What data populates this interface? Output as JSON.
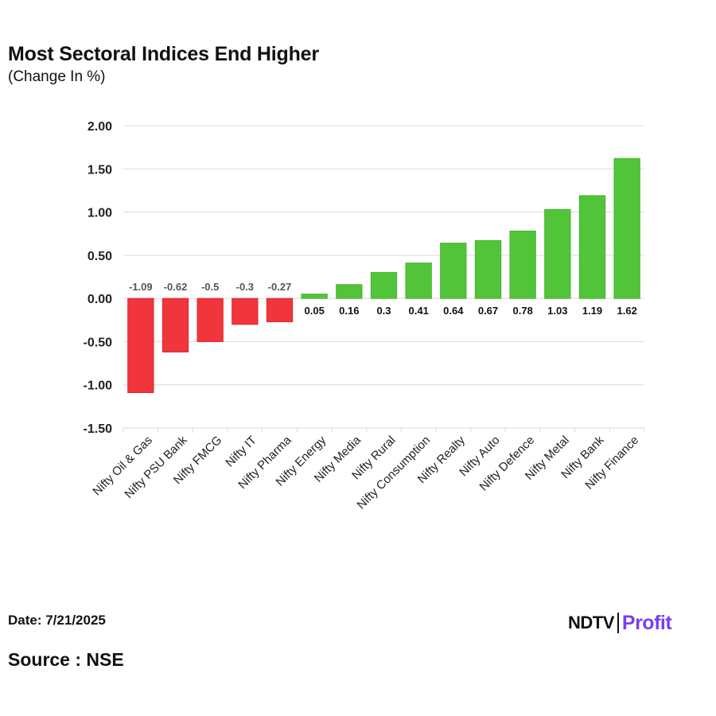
{
  "header": {
    "title": "Most Sectoral Indices End Higher",
    "subtitle": "(Change In %)"
  },
  "footer": {
    "date": "Date: 7/21/2025",
    "source": "Source : NSE",
    "logo_left": "NDTV",
    "logo_right": "Profit"
  },
  "colors": {
    "positive": "#52c43a",
    "negative": "#f0353d",
    "grid": "#d9d9d9"
  },
  "chart_data": {
    "type": "bar",
    "title": "Most Sectoral Indices End Higher",
    "subtitle": "(Change In %)",
    "categories": [
      "Nifty Oil & Gas",
      "Nifty PSU Bank",
      "Nifty FMCG",
      "Nifty IT",
      "Nifty Pharma",
      "Nifty Energy",
      "Nifty Media",
      "Nifty Rural",
      "Nifty Consumption",
      "Nifty Realty",
      "Nifty Auto",
      "Nifty Defence",
      "Nifty Metal",
      "Nifty Bank",
      "Nifty Finance"
    ],
    "values": [
      -1.09,
      -0.62,
      -0.5,
      -0.3,
      -0.27,
      0.05,
      0.16,
      0.3,
      0.41,
      0.64,
      0.67,
      0.78,
      1.03,
      1.19,
      1.62
    ],
    "value_labels": [
      "-1.09",
      "-0.62",
      "-0.5",
      "-0.3",
      "-0.27",
      "0.05",
      "0.16",
      "0.3",
      "0.41",
      "0.64",
      "0.67",
      "0.78",
      "1.03",
      "1.19",
      "1.62"
    ],
    "yticks": [
      "2.00",
      "1.50",
      "1.00",
      "0.50",
      "0.00",
      "-0.50",
      "-1.00",
      "-1.50"
    ],
    "ylim": [
      -1.5,
      2.0
    ],
    "grid": true,
    "legend": "none"
  }
}
